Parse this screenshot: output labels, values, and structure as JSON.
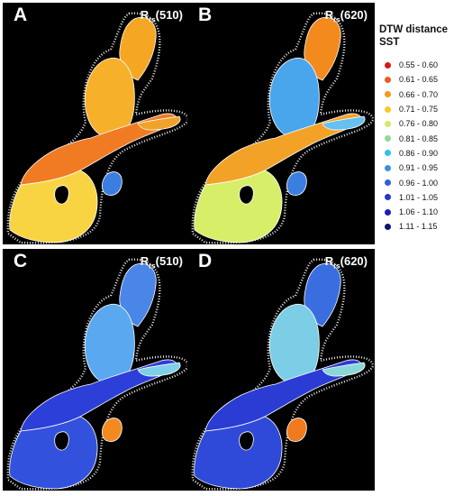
{
  "panels": [
    {
      "letter": "A",
      "band_prefix": "R",
      "band_sub": "rs",
      "band_value": "(510)",
      "colors": {
        "north": "#f5a623",
        "bothnia": "#f6b02a",
        "mid": "#f07b22",
        "south": "#f9d442",
        "riga": "#3a7fe0",
        "finland": "#f0a22a"
      }
    },
    {
      "letter": "B",
      "band_prefix": "R",
      "band_sub": "rs",
      "band_value": "(620)",
      "colors": {
        "north": "#f28a1e",
        "bothnia": "#4aa6ec",
        "mid": "#f2a226",
        "south": "#d7ee68",
        "riga": "#3a7fe0",
        "finland": "#66c0f0"
      }
    },
    {
      "letter": "C",
      "band_prefix": "R",
      "band_sub": "rs",
      "band_value": "(510)",
      "colors": {
        "north": "#4a86e8",
        "bothnia": "#5aa8f0",
        "mid": "#2c3fd8",
        "south": "#3252de",
        "riga": "#f28a1e",
        "finland": "#7ed0e8"
      }
    },
    {
      "letter": "D",
      "band_prefix": "R",
      "band_sub": "rs",
      "band_value": "(620)",
      "colors": {
        "north": "#3a6ee0",
        "bothnia": "#7ccde6",
        "mid": "#2a3cd4",
        "south": "#2f4ad8",
        "riga": "#f07a1e",
        "finland": "#8ad7d8"
      }
    }
  ],
  "legend": {
    "title_line1": "DTW distance",
    "title_line2": "SST",
    "items": [
      {
        "label": "0.55 - 0.60",
        "color": "#d7191c"
      },
      {
        "label": "0.61 - 0.65",
        "color": "#f05a23"
      },
      {
        "label": "0.66 - 0.70",
        "color": "#f39a1e"
      },
      {
        "label": "0.71 - 0.75",
        "color": "#f7c72b"
      },
      {
        "label": "0.76 - 0.80",
        "color": "#d7e86a"
      },
      {
        "label": "0.81 - 0.85",
        "color": "#8fd99a"
      },
      {
        "label": "0.86 - 0.90",
        "color": "#33c0e6"
      },
      {
        "label": "0.91 - 0.95",
        "color": "#3d8fe0"
      },
      {
        "label": "0.96 - 1.00",
        "color": "#2f5fdc"
      },
      {
        "label": "1.01 - 1.05",
        "color": "#2337cf"
      },
      {
        "label": "1.06 - 1.10",
        "color": "#1a1fae"
      },
      {
        "label": "1.11 - 1.15",
        "color": "#0d1370"
      }
    ]
  }
}
